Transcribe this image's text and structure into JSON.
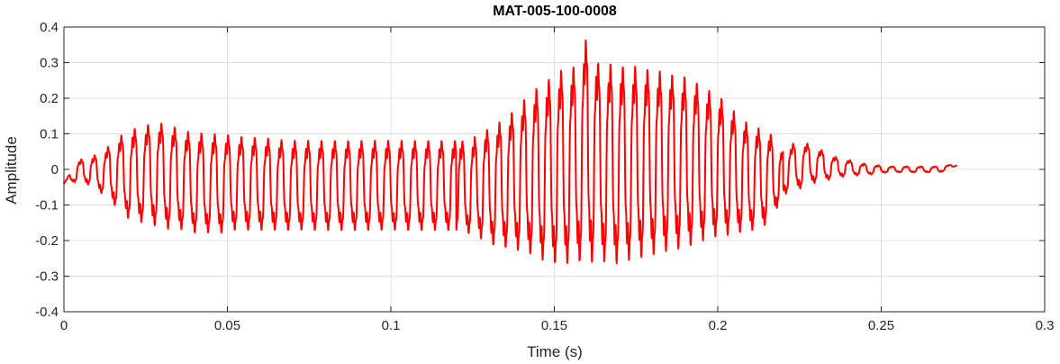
{
  "chart_data": {
    "type": "line",
    "title": "MAT-005-100-0008",
    "xlabel": "Time (s)",
    "ylabel": "Amplitude",
    "xlim": [
      0,
      0.3
    ],
    "ylim": [
      -0.4,
      0.4
    ],
    "xticks": [
      0,
      0.05,
      0.1,
      0.15,
      0.2,
      0.25,
      0.3
    ],
    "xtick_labels": [
      "0",
      "0.05",
      "0.1",
      "0.15",
      "0.2",
      "0.25",
      "0.3"
    ],
    "yticks": [
      -0.4,
      -0.3,
      -0.2,
      -0.1,
      0,
      0.1,
      0.2,
      0.3,
      0.4
    ],
    "ytick_labels": [
      "-0.4",
      "-0.3",
      "-0.2",
      "-0.1",
      "0",
      "0.1",
      "0.2",
      "0.3",
      "0.4"
    ],
    "grid": true,
    "series": [
      {
        "color": "#ff0000",
        "x": [
          0,
          0.004,
          0.008,
          0.012,
          0.016,
          0.02,
          0.024,
          0.028,
          0.032,
          0.036,
          0.04,
          0.044,
          0.048,
          0.052,
          0.056,
          0.06,
          0.064,
          0.068,
          0.072,
          0.076,
          0.08,
          0.084,
          0.088,
          0.092,
          0.096,
          0.1,
          0.104,
          0.108,
          0.112,
          0.116,
          0.12,
          0.124,
          0.128,
          0.132,
          0.136,
          0.14,
          0.144,
          0.148,
          0.152,
          0.156,
          0.16,
          0.164,
          0.168,
          0.172,
          0.176,
          0.18,
          0.184,
          0.188,
          0.192,
          0.196,
          0.2,
          0.204,
          0.208,
          0.212,
          0.216,
          0.22,
          0.224,
          0.228,
          0.232,
          0.236,
          0.24,
          0.244,
          0.248,
          0.252,
          0.256,
          0.26,
          0.264,
          0.268,
          0.272,
          0.273
        ],
        "upper": [
          -0.04,
          0.03,
          0.04,
          0.06,
          0.1,
          0.13,
          0.14,
          0.155,
          0.15,
          0.13,
          0.125,
          0.12,
          0.12,
          0.115,
          0.11,
          0.11,
          0.105,
          0.1,
          0.1,
          0.1,
          0.1,
          0.1,
          0.1,
          0.1,
          0.1,
          0.1,
          0.1,
          0.1,
          0.1,
          0.1,
          0.1,
          0.1,
          0.13,
          0.15,
          0.18,
          0.22,
          0.26,
          0.29,
          0.32,
          0.33,
          0.42,
          0.33,
          0.34,
          0.33,
          0.33,
          0.32,
          0.31,
          0.3,
          0.29,
          0.26,
          0.24,
          0.2,
          0.16,
          0.14,
          0.12,
          0.06,
          0.09,
          0.08,
          0.06,
          0.04,
          0.03,
          0.02,
          0.015,
          0.01,
          0.01,
          0.01,
          0.01,
          0.01,
          0.015,
          0.015
        ],
        "lower": [
          -0.04,
          -0.04,
          -0.05,
          -0.08,
          -0.12,
          -0.16,
          -0.17,
          -0.18,
          -0.19,
          -0.19,
          -0.2,
          -0.2,
          -0.2,
          -0.19,
          -0.19,
          -0.19,
          -0.19,
          -0.19,
          -0.19,
          -0.19,
          -0.19,
          -0.19,
          -0.19,
          -0.19,
          -0.19,
          -0.19,
          -0.19,
          -0.19,
          -0.19,
          -0.19,
          -0.19,
          -0.2,
          -0.22,
          -0.24,
          -0.25,
          -0.26,
          -0.28,
          -0.3,
          -0.31,
          -0.3,
          -0.31,
          -0.3,
          -0.31,
          -0.3,
          -0.29,
          -0.28,
          -0.27,
          -0.26,
          -0.25,
          -0.23,
          -0.22,
          -0.21,
          -0.2,
          -0.19,
          -0.17,
          -0.08,
          -0.07,
          -0.05,
          -0.04,
          -0.03,
          -0.02,
          -0.02,
          -0.015,
          -0.01,
          -0.01,
          -0.01,
          -0.01,
          -0.01,
          0.005,
          0.01
        ]
      }
    ]
  }
}
